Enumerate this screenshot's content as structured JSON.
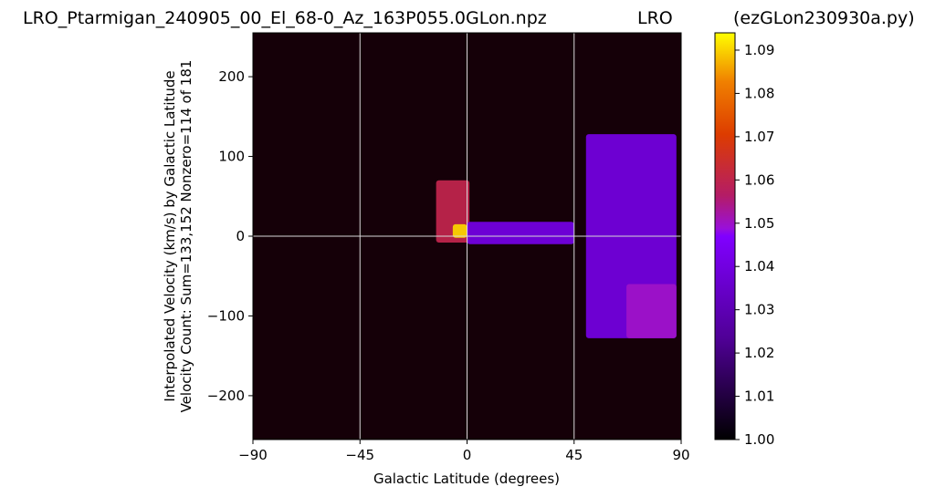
{
  "titles": {
    "left": "LRO_Ptarmigan_240905_00_El_68-0_Az_163P055.0GLon.npz",
    "center": "LRO",
    "right": "(ezGLon230930a.py)"
  },
  "chart_data": {
    "type": "heatmap",
    "xlabel": "Galactic Latitude (degrees)",
    "ylabel": [
      "Interpolated Velocity (km/s) by Galactic Latitude",
      "Velocity Count: Sum=133,152 Nonzero=114 of 181"
    ],
    "xlim": [
      -90,
      90
    ],
    "ylim": [
      -255,
      255
    ],
    "x_ticks": [
      -90,
      -45,
      0,
      45,
      90
    ],
    "y_ticks": [
      -200,
      -100,
      0,
      100,
      200
    ],
    "grid_x": [
      -45,
      0,
      45
    ],
    "grid_y": [
      0
    ],
    "colorscale": "gnuplot",
    "colorbar": {
      "min": 1.0,
      "max": 1.094,
      "ticks": [
        "1.00",
        "1.01",
        "1.02",
        "1.03",
        "1.04",
        "1.05",
        "1.06",
        "1.07",
        "1.08",
        "1.09"
      ]
    },
    "features": [
      {
        "lat_range": [
          -13,
          1
        ],
        "vel_range": [
          -8,
          70
        ],
        "peak": 1.06
      },
      {
        "lat_range": [
          -6,
          0
        ],
        "vel_range": [
          -2,
          15
        ],
        "peak": 1.09
      },
      {
        "lat_range": [
          0,
          45
        ],
        "vel_range": [
          -10,
          18
        ],
        "peak": 1.04
      },
      {
        "lat_range": [
          50,
          88
        ],
        "vel_range": [
          -128,
          128
        ],
        "peak": 1.045
      },
      {
        "lat_range": [
          67,
          88
        ],
        "vel_range": [
          -128,
          -60
        ],
        "peak": 1.05
      }
    ]
  }
}
